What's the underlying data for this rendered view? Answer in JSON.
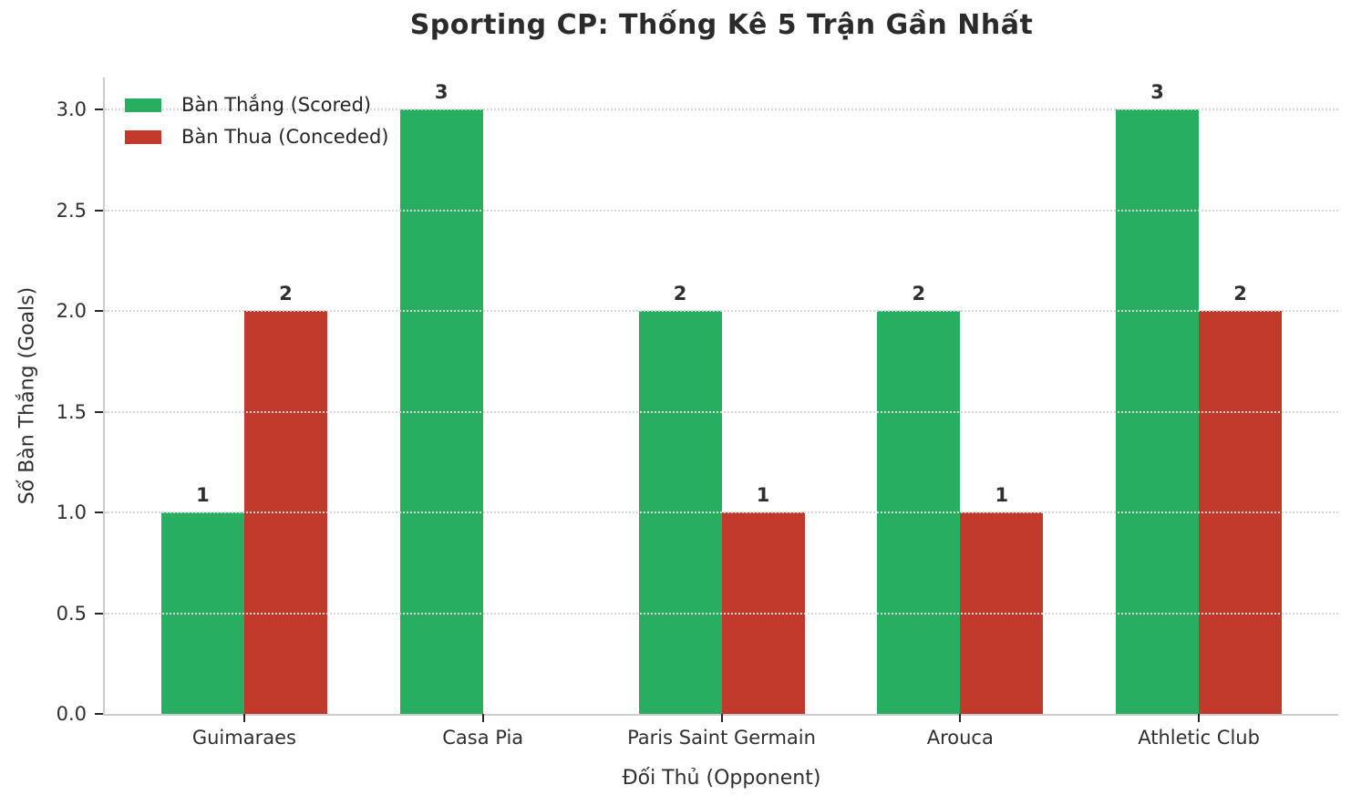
{
  "figure": {
    "title": "Sporting CP: Thống Kê 5 Trận Gần Nhất"
  },
  "chart_data": {
    "type": "bar",
    "title": "Sporting CP: Thống Kê 5 Trận Gần Nhất",
    "xlabel": "Đối Thủ (Opponent)",
    "ylabel": "Số Bàn Thắng (Goals)",
    "categories": [
      "Guimaraes",
      "Casa Pia",
      "Paris Saint Germain",
      "Arouca",
      "Athletic Club"
    ],
    "series": [
      {
        "name": "Bàn Thắng (Scored)",
        "color": "#27ae60",
        "values": [
          1,
          3,
          2,
          2,
          3
        ]
      },
      {
        "name": "Bàn Thua (Conceded)",
        "color": "#c0392b",
        "values": [
          2,
          0,
          1,
          1,
          2
        ]
      }
    ],
    "yticks": [
      0.0,
      0.5,
      1.0,
      1.5,
      2.0,
      2.5,
      3.0
    ],
    "ytick_labels": [
      "0.0",
      "0.5",
      "1.0",
      "1.5",
      "2.0",
      "2.5",
      "3.0"
    ],
    "ylim": [
      0,
      3.16
    ],
    "grid": "horizontal dotted gridlines drawn over bars",
    "legend_position": "upper left",
    "bar_value_labels": [
      [
        "1",
        "3",
        "2",
        "2",
        "3"
      ],
      [
        "2",
        "",
        "1",
        "1",
        "2"
      ]
    ]
  },
  "colors": {
    "scored": "#27ae60",
    "conceded": "#c0392b",
    "text": "#2f2f2f",
    "spine": "#cccccc",
    "grid": "#d6d6d6",
    "background": "#ffffff"
  }
}
